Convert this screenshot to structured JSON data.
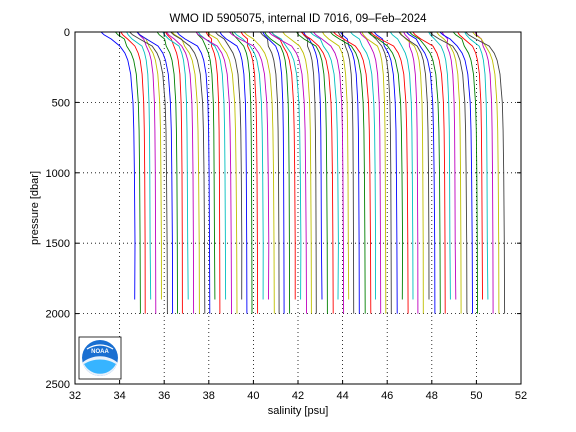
{
  "chart_data": {
    "type": "line",
    "title": "WMO ID 5905075, internal ID 7016, 09–Feb–2024",
    "xlabel": "salinity [psu]",
    "ylabel": "pressure [dbar]",
    "xlim": [
      32,
      52
    ],
    "ylim": [
      0,
      2500
    ],
    "y_reversed": true,
    "xticks": [
      32,
      34,
      36,
      38,
      40,
      42,
      44,
      46,
      48,
      50,
      52
    ],
    "yticks": [
      0,
      500,
      1000,
      1500,
      2000,
      2500
    ],
    "grid": "dotted",
    "logo": "noaa-logo",
    "series_colors": [
      "#0000ff",
      "#008000",
      "#ff0000",
      "#00bfbf",
      "#bf00bf",
      "#bfbf00",
      "#404040"
    ],
    "profiles": {
      "count": 70,
      "description_deep_salinity_first": 34.6,
      "description_deep_salinity_step": 0.24,
      "shape": "salinity increases with depth, each profile offset by step",
      "pressure_levels": [
        0,
        20,
        50,
        100,
        150,
        200,
        300,
        400,
        500,
        700,
        1000,
        1500,
        2000
      ],
      "shape_offsets": [
        -1.1,
        -1.0,
        -0.75,
        -0.45,
        -0.28,
        -0.18,
        -0.08,
        -0.04,
        0.0,
        0.03,
        0.05,
        0.07,
        0.08
      ],
      "max_pressure_options": [
        1900,
        2000
      ]
    }
  }
}
